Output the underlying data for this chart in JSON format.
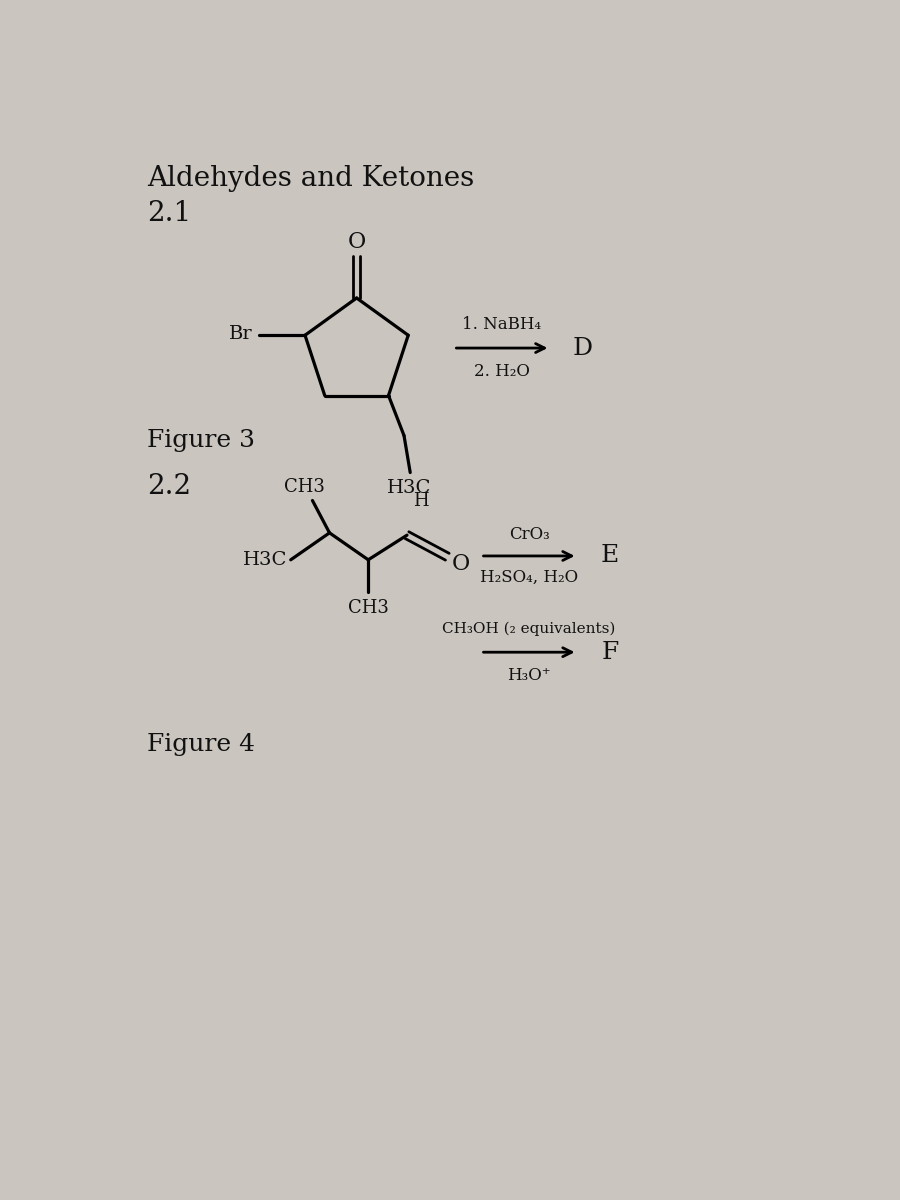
{
  "bg_color": "#cac5be",
  "title": "Aldehydes and Ketones",
  "section1_label": "2.1",
  "section2_label": "2.2",
  "figure3_label": "Figure 3",
  "figure4_label": "Figure 4",
  "reaction1_line1": "1. NaBH₄",
  "reaction1_line2": "2. H₂O",
  "reaction1_product": "D",
  "reaction2_line1": "CrO₃",
  "reaction2_line2": "H₂SO₄, H₂O",
  "reaction2_product": "E",
  "reaction3_line1": "CH₃OH (₂ equivalents)",
  "reaction3_line2": "H₃O⁺",
  "reaction3_product": "F",
  "text_color": "#111111",
  "font_size_title": 20,
  "font_size_section": 20,
  "font_size_figure": 18,
  "font_size_reaction": 12,
  "font_size_chem": 14,
  "font_size_product": 18,
  "lw": 2.0
}
